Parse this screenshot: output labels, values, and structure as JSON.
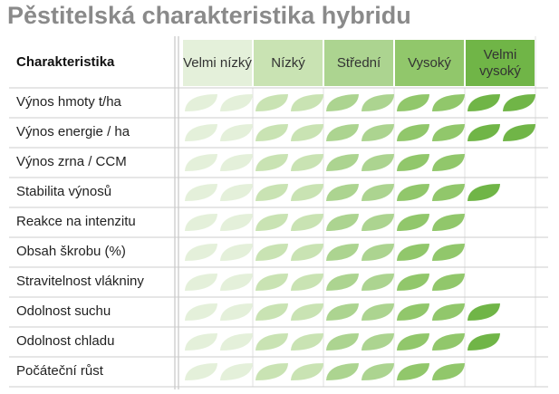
{
  "title": "Pěstitelská charakteristika hybridu",
  "header": "Charakteristika",
  "levels": [
    {
      "label": "Velmi nízký",
      "color": "#e4f0da"
    },
    {
      "label": "Nízký",
      "color": "#c9e3b3"
    },
    {
      "label": "Střední",
      "color": "#acd490"
    },
    {
      "label": "Vysoký",
      "color": "#91c76b"
    },
    {
      "label": "Velmi vysoký",
      "color": "#70b547"
    }
  ],
  "rows": [
    {
      "label": "Výnos hmoty t/ha",
      "value": 10
    },
    {
      "label": "Výnos energie / ha",
      "value": 10
    },
    {
      "label": "Výnos zrna / CCM",
      "value": 8
    },
    {
      "label": "Stabilita výnosů",
      "value": 9
    },
    {
      "label": "Reakce na intenzitu",
      "value": 8
    },
    {
      "label": "Obsah škrobu (%)",
      "value": 8
    },
    {
      "label": "Stravitelnost vlákniny",
      "value": 8
    },
    {
      "label": "Odolnost suchu",
      "value": 9
    },
    {
      "label": "Odolnost chladu",
      "value": 9
    },
    {
      "label": "Počáteční růst",
      "value": 8
    }
  ]
}
